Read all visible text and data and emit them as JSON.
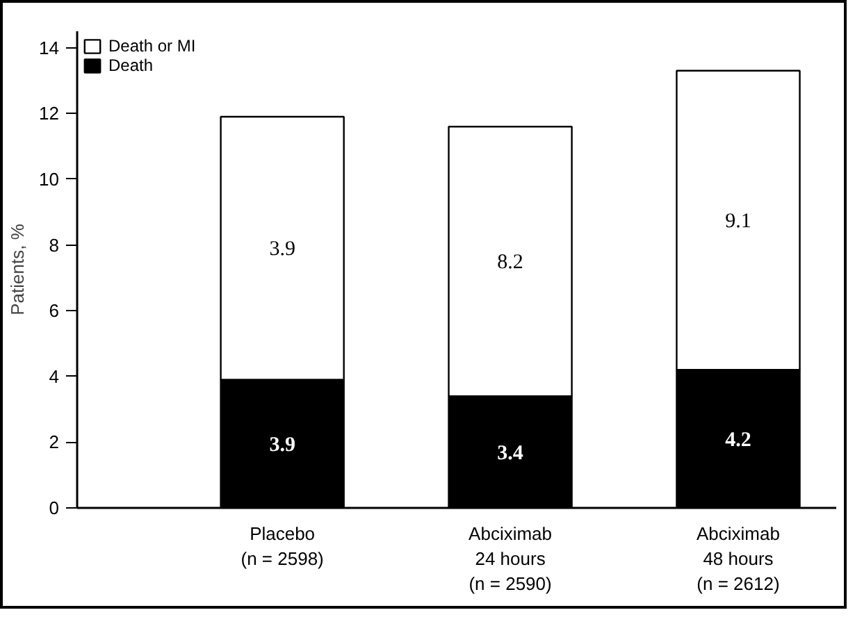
{
  "chart_data": {
    "type": "bar",
    "stacked": true,
    "categories": [
      "Placebo\n(n = 2598)",
      "Abciximab\n24 hours\n(n = 2590)",
      "Abciximab\n48 hours\n(n = 2612)"
    ],
    "series": [
      {
        "name": "Death",
        "color": "#000000",
        "values": [
          3.9,
          3.4,
          4.2
        ],
        "value_labels": [
          "3.9",
          "3.4",
          "4.2"
        ]
      },
      {
        "name": "Death or MI",
        "color": "#ffffff",
        "values": [
          8.0,
          8.2,
          9.1
        ]
      }
    ],
    "annotations": [
      "3.9",
      "8.2",
      "9.1"
    ],
    "ylabel": "Patients, %",
    "ylim": [
      0,
      14.5
    ],
    "yticks": [
      0,
      2,
      4,
      6,
      8,
      10,
      12,
      14
    ],
    "grid": false,
    "legend": "top left"
  }
}
